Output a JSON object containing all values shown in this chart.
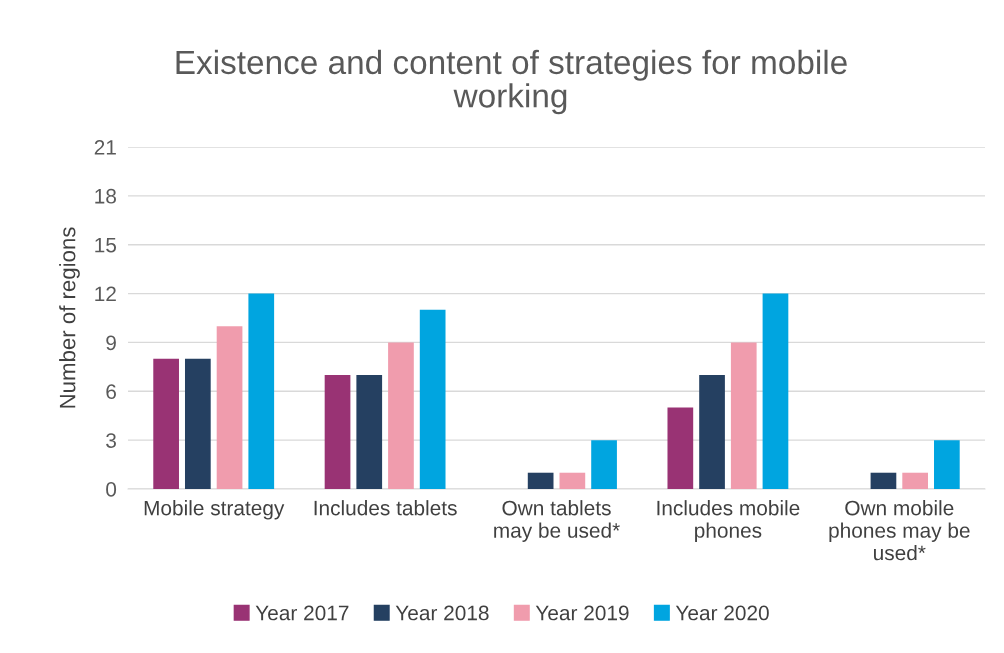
{
  "chart_data": {
    "type": "bar",
    "title": "Existence and content of strategies for mobile\nworking",
    "ylabel": "Number of regions",
    "categories": [
      "Mobile strategy",
      "Includes tablets",
      "Own tablets\nmay be used*",
      "Includes mobile\nphones",
      "Own mobile\nphones may be\nused*"
    ],
    "series": [
      {
        "name": "Year 2017",
        "color": "#993374",
        "values": [
          8,
          7,
          0,
          5,
          0
        ]
      },
      {
        "name": "Year 2018",
        "color": "#254061",
        "values": [
          8,
          7,
          1,
          7,
          1
        ]
      },
      {
        "name": "Year 2019",
        "color": "#f09cad",
        "values": [
          10,
          9,
          1,
          9,
          1
        ]
      },
      {
        "name": "Year 2020",
        "color": "#00a5e0",
        "values": [
          12,
          11,
          3,
          12,
          3
        ]
      }
    ],
    "ylim": [
      0,
      21
    ],
    "yticks": [
      0,
      3,
      6,
      9,
      12,
      15,
      18,
      21
    ],
    "grid": "y",
    "legend": "bottom"
  }
}
